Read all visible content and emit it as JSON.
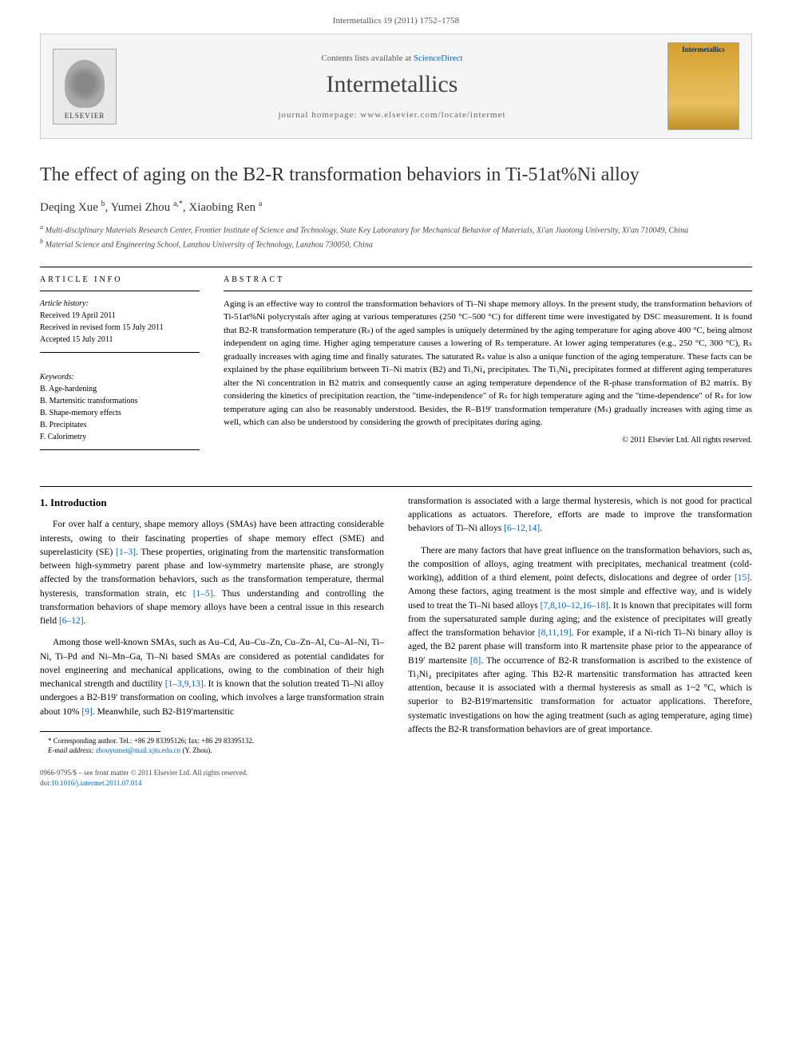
{
  "header_citation": "Intermetallics 19 (2011) 1752–1758",
  "banner": {
    "publisher": "ELSEVIER",
    "contents_prefix": "Contents lists available at ",
    "contents_link": "ScienceDirect",
    "journal_name": "Intermetallics",
    "homepage_prefix": "journal homepage: ",
    "homepage_url": "www.elsevier.com/locate/intermet",
    "cover_label": "Intermetallics"
  },
  "title": "The effect of aging on the B2-R transformation behaviors in Ti-51at%Ni alloy",
  "authors_html": "Deqing Xue <sup>b</sup>, Yumei Zhou <sup>a,*</sup>, Xiaobing Ren <sup>a</sup>",
  "affiliations": {
    "a": "Multi-disciplinary Materials Research Center, Frontier Institute of Science and Technology, State Key Laboratory for Mechanical Behavior of Materials, Xi'an Jiaotong University, Xi'an 710049, China",
    "b": "Material Science and Engineering School, Lanzhou University of Technology, Lanzhou 730050, China"
  },
  "article_info": {
    "heading": "ARTICLE INFO",
    "history_label": "Article history:",
    "received": "Received 19 April 2011",
    "revised": "Received in revised form 15 July 2011",
    "accepted": "Accepted 15 July 2011",
    "keywords_label": "Keywords:",
    "keywords": [
      "B. Age-hardening",
      "B. Martensitic transformations",
      "B. Shape-memory effects",
      "B. Precipitates",
      "F. Calorimetry"
    ]
  },
  "abstract": {
    "heading": "ABSTRACT",
    "text": "Aging is an effective way to control the transformation behaviors of Ti–Ni shape memory alloys. In the present study, the transformation behaviors of Ti-51at%Ni polycrystals after aging at various temperatures (250 °C–500 °C) for different time were investigated by DSC measurement. It is found that B2-R transformation temperature (Rₛ) of the aged samples is uniquely determined by the aging temperature for aging above 400 °C, being almost independent on aging time. Higher aging temperature causes a lowering of Rₛ temperature. At lower aging temperatures (e.g., 250 °C, 300 °C), Rₛ gradually increases with aging time and finally saturates. The saturated Rₛ value is also a unique function of the aging temperature. These facts can be explained by the phase equilibrium between Ti–Ni matrix (B2) and Ti₃Ni₄ precipitates. The Ti₃Ni₄ precipitates formed at different aging temperatures alter the Ni concentration in B2 matrix and consequently cause an aging temperature dependence of the R-phase transformation of B2 matrix. By considering the kinetics of precipitation reaction, the \"time-independence\" of Rₛ for high temperature aging and the \"time-dependence\" of Rₛ for low temperature aging can also be reasonably understood. Besides, the R–B19′ transformation temperature (Mₛ) gradually increases with aging time as well, which can also be understood by considering the growth of precipitates during aging.",
    "copyright": "© 2011 Elsevier Ltd. All rights reserved."
  },
  "body": {
    "section_title": "1. Introduction",
    "para1": "For over half a century, shape memory alloys (SMAs) have been attracting considerable interests, owing to their fascinating properties of shape memory effect (SME) and superelasticity (SE) [1–3]. These properties, originating from the martensitic transformation between high-symmetry parent phase and low-symmetry martensite phase, are strongly affected by the transformation behaviors, such as the transformation temperature, thermal hysteresis, transformation strain, etc [1–5]. Thus understanding and controlling the transformation behaviors of shape memory alloys have been a central issue in this research field [6–12].",
    "para2": "Among those well-known SMAs, such as Au–Cd, Au–Cu–Zn, Cu–Zn–Al, Cu–Al–Ni, Ti–Ni, Ti–Pd and Ni–Mn–Ga, Ti–Ni based SMAs are considered as potential candidates for novel engineering and mechanical applications, owing to the combination of their high mechanical strength and ductility [1–3,9,13]. It is known that the solution treated Ti–Ni alloy undergoes a B2-B19′ transformation on cooling, which involves a large transformation strain about 10% [9]. Meanwhile, such B2-B19′martensitic",
    "para3": "transformation is associated with a large thermal hysteresis, which is not good for practical applications as actuators. Therefore, efforts are made to improve the transformation behaviors of Ti–Ni alloys [6–12,14].",
    "para4": "There are many factors that have great influence on the transformation behaviors, such as, the composition of alloys, aging treatment with precipitates, mechanical treatment (cold-working), addition of a third element, point defects, dislocations and degree of order [15]. Among these factors, aging treatment is the most simple and effective way, and is widely used to treat the Ti–Ni based alloys [7,8,10–12,16–18]. It is known that precipitates will form from the supersaturated sample during aging; and the existence of precipitates will greatly affect the transformation behavior [8,11,19]. For example, if a Ni-rich Ti–Ni binary alloy is aged, the B2 parent phase will transform into R martensite phase prior to the appearance of B19′ martensite [8]. The occurrence of B2-R transformation is ascribed to the existence of Ti₃Ni₄ precipitates after aging. This B2-R martensitic transformation has attracted keen attention, because it is associated with a thermal hysteresis as small as 1~2 °C, which is superior to B2-B19′martensitic transformation for actuator applications. Therefore, systematic investigations on how the aging treatment (such as aging temperature, aging time) affects the B2-R transformation behaviors are of great importance."
  },
  "footnote": {
    "corresponding": "* Corresponding author. Tel.: +86 29 83395126; fax: +86 29 83395132.",
    "email_label": "E-mail address: ",
    "email": "zhouyumei@mail.xjtu.edu.cn",
    "email_suffix": " (Y. Zhou)."
  },
  "footer": {
    "issn": "0966-9795/$ – see front matter © 2011 Elsevier Ltd. All rights reserved.",
    "doi_prefix": "doi:",
    "doi": "10.1016/j.intermet.2011.07.014"
  },
  "colors": {
    "link": "#0066cc",
    "text": "#000000",
    "muted": "#555555",
    "banner_bg": "#f5f5f5",
    "cover_gradient_top": "#d4a030",
    "cover_gradient_mid": "#e8c060"
  }
}
